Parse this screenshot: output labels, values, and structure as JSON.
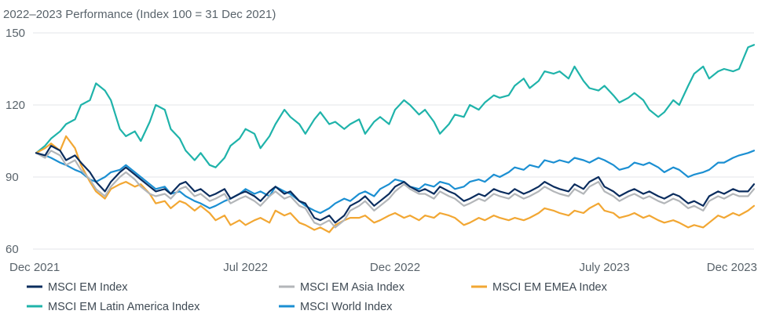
{
  "chart_data": {
    "type": "line",
    "title": "2022–2023 Performance (Index 100 = 31 Dec 2021)",
    "xlabel": "",
    "ylabel": "",
    "ylim": [
      60,
      150
    ],
    "yticks": [
      60,
      90,
      120,
      150
    ],
    "x_range": [
      0,
      24
    ],
    "x_unit": "months since 31 Dec 2021",
    "xticks": [
      {
        "x": 0,
        "label": "Dec 2021"
      },
      {
        "x": 7,
        "label": "Jul 2022"
      },
      {
        "x": 12,
        "label": "Dec 2022"
      },
      {
        "x": 19,
        "label": "July 2023"
      },
      {
        "x": 24,
        "label": "Dec 2023"
      }
    ],
    "grid": true,
    "legend_position": "bottom",
    "series": [
      {
        "name": "MSCI EM Index",
        "color": "#0b2d5e",
        "x": [
          0,
          0.3,
          0.5,
          0.8,
          1.0,
          1.3,
          1.5,
          1.8,
          2.0,
          2.3,
          2.5,
          2.8,
          3.0,
          3.3,
          3.5,
          3.8,
          4.0,
          4.3,
          4.5,
          4.8,
          5.0,
          5.3,
          5.5,
          5.8,
          6.0,
          6.3,
          6.5,
          6.8,
          7.0,
          7.3,
          7.5,
          7.8,
          8.0,
          8.3,
          8.5,
          8.8,
          9.0,
          9.3,
          9.5,
          9.8,
          10.0,
          10.3,
          10.5,
          10.8,
          11.0,
          11.3,
          11.5,
          11.8,
          12.0,
          12.3,
          12.5,
          12.8,
          13.0,
          13.3,
          13.5,
          13.8,
          14.0,
          14.3,
          14.5,
          14.8,
          15.0,
          15.3,
          15.5,
          15.8,
          16.0,
          16.3,
          16.5,
          16.8,
          17.0,
          17.3,
          17.5,
          17.8,
          18.0,
          18.3,
          18.5,
          18.8,
          19.0,
          19.3,
          19.5,
          19.8,
          20.0,
          20.3,
          20.5,
          20.8,
          21.0,
          21.3,
          21.5,
          21.8,
          22.0,
          22.3,
          22.5,
          22.8,
          23.0,
          23.3,
          23.5,
          23.8,
          24.0
        ],
        "values": [
          100,
          99,
          103,
          101,
          97,
          99,
          96,
          92,
          88,
          84,
          88,
          92,
          94,
          91,
          89,
          86,
          84,
          85,
          83,
          87,
          88,
          84,
          85,
          82,
          83,
          85,
          81,
          83,
          84,
          82,
          80,
          84,
          86,
          83,
          84,
          80,
          79,
          73,
          72,
          74,
          71,
          74,
          78,
          80,
          82,
          78,
          80,
          83,
          86,
          88,
          86,
          84,
          85,
          83,
          86,
          84,
          83,
          80,
          81,
          83,
          82,
          85,
          84,
          83,
          85,
          83,
          84,
          86,
          88,
          86,
          85,
          84,
          87,
          85,
          88,
          90,
          86,
          84,
          82,
          84,
          85,
          83,
          84,
          82,
          81,
          83,
          82,
          79,
          80,
          78,
          82,
          84,
          83,
          85,
          84,
          84,
          87
        ]
      },
      {
        "name": "MSCI EM Asia Index",
        "color": "#b3b6b9",
        "x": [
          0,
          0.3,
          0.5,
          0.8,
          1.0,
          1.3,
          1.5,
          1.8,
          2.0,
          2.3,
          2.5,
          2.8,
          3.0,
          3.3,
          3.5,
          3.8,
          4.0,
          4.3,
          4.5,
          4.8,
          5.0,
          5.3,
          5.5,
          5.8,
          6.0,
          6.3,
          6.5,
          6.8,
          7.0,
          7.3,
          7.5,
          7.8,
          8.0,
          8.3,
          8.5,
          8.8,
          9.0,
          9.3,
          9.5,
          9.8,
          10.0,
          10.3,
          10.5,
          10.8,
          11.0,
          11.3,
          11.5,
          11.8,
          12.0,
          12.3,
          12.5,
          12.8,
          13.0,
          13.3,
          13.5,
          13.8,
          14.0,
          14.3,
          14.5,
          14.8,
          15.0,
          15.3,
          15.5,
          15.8,
          16.0,
          16.3,
          16.5,
          16.8,
          17.0,
          17.3,
          17.5,
          17.8,
          18.0,
          18.3,
          18.5,
          18.8,
          19.0,
          19.3,
          19.5,
          19.8,
          20.0,
          20.3,
          20.5,
          20.8,
          21.0,
          21.3,
          21.5,
          21.8,
          22.0,
          22.3,
          22.5,
          22.8,
          23.0,
          23.3,
          23.5,
          23.8,
          24.0
        ],
        "values": [
          100,
          98,
          101,
          99,
          95,
          97,
          93,
          89,
          85,
          82,
          86,
          90,
          92,
          89,
          86,
          83,
          82,
          83,
          81,
          85,
          86,
          82,
          83,
          80,
          81,
          83,
          79,
          81,
          82,
          80,
          78,
          82,
          84,
          81,
          82,
          78,
          77,
          71,
          70,
          72,
          69,
          72,
          76,
          78,
          80,
          76,
          78,
          81,
          84,
          87,
          85,
          83,
          83,
          81,
          84,
          82,
          81,
          78,
          79,
          81,
          80,
          83,
          82,
          81,
          83,
          81,
          82,
          84,
          86,
          84,
          83,
          82,
          85,
          83,
          86,
          88,
          84,
          82,
          80,
          82,
          83,
          81,
          82,
          80,
          79,
          81,
          80,
          77,
          78,
          76,
          80,
          82,
          81,
          83,
          82,
          82,
          85
        ]
      },
      {
        "name": "MSCI EM EMEA Index",
        "color": "#f2a733",
        "x": [
          0,
          0.3,
          0.5,
          0.8,
          1.0,
          1.3,
          1.5,
          1.8,
          2.0,
          2.3,
          2.5,
          2.8,
          3.0,
          3.3,
          3.5,
          3.8,
          4.0,
          4.3,
          4.5,
          4.8,
          5.0,
          5.3,
          5.5,
          5.8,
          6.0,
          6.3,
          6.5,
          6.8,
          7.0,
          7.3,
          7.5,
          7.8,
          8.0,
          8.3,
          8.5,
          8.8,
          9.0,
          9.3,
          9.5,
          9.8,
          10.0,
          10.3,
          10.5,
          10.8,
          11.0,
          11.3,
          11.5,
          11.8,
          12.0,
          12.3,
          12.5,
          12.8,
          13.0,
          13.3,
          13.5,
          13.8,
          14.0,
          14.3,
          14.5,
          14.8,
          15.0,
          15.3,
          15.5,
          15.8,
          16.0,
          16.3,
          16.5,
          16.8,
          17.0,
          17.3,
          17.5,
          17.8,
          18.0,
          18.3,
          18.5,
          18.8,
          19.0,
          19.3,
          19.5,
          19.8,
          20.0,
          20.3,
          20.5,
          20.8,
          21.0,
          21.3,
          21.5,
          21.8,
          22.0,
          22.3,
          22.5,
          22.8,
          23.0,
          23.3,
          23.5,
          23.8,
          24.0
        ],
        "values": [
          100,
          102,
          104,
          101,
          107,
          102,
          95,
          88,
          84,
          81,
          85,
          87,
          88,
          86,
          87,
          83,
          79,
          80,
          77,
          80,
          79,
          76,
          78,
          75,
          72,
          74,
          70,
          72,
          70,
          72,
          73,
          71,
          76,
          74,
          75,
          71,
          70,
          68,
          69,
          67,
          70,
          72,
          73,
          73,
          74,
          71,
          72,
          74,
          75,
          73,
          74,
          72,
          74,
          73,
          75,
          74,
          73,
          70,
          71,
          73,
          72,
          74,
          73,
          72,
          73,
          72,
          73,
          75,
          77,
          76,
          75,
          74,
          76,
          75,
          77,
          79,
          76,
          75,
          73,
          74,
          75,
          73,
          74,
          72,
          71,
          72,
          71,
          69,
          70,
          69,
          71,
          74,
          73,
          75,
          74,
          76,
          78
        ]
      },
      {
        "name": "MSCI EM Latin America Index",
        "color": "#1fb3aa",
        "x": [
          0,
          0.3,
          0.5,
          0.8,
          1.0,
          1.3,
          1.5,
          1.8,
          2.0,
          2.3,
          2.5,
          2.8,
          3.0,
          3.3,
          3.5,
          3.8,
          4.0,
          4.3,
          4.5,
          4.8,
          5.0,
          5.3,
          5.5,
          5.8,
          6.0,
          6.3,
          6.5,
          6.8,
          7.0,
          7.3,
          7.5,
          7.8,
          8.0,
          8.3,
          8.5,
          8.8,
          9.0,
          9.3,
          9.5,
          9.8,
          10.0,
          10.3,
          10.5,
          10.8,
          11.0,
          11.3,
          11.5,
          11.8,
          12.0,
          12.3,
          12.5,
          12.8,
          13.0,
          13.3,
          13.5,
          13.8,
          14.0,
          14.3,
          14.5,
          14.8,
          15.0,
          15.3,
          15.5,
          15.8,
          16.0,
          16.3,
          16.5,
          16.8,
          17.0,
          17.3,
          17.5,
          17.8,
          18.0,
          18.3,
          18.5,
          18.8,
          19.0,
          19.3,
          19.5,
          19.8,
          20.0,
          20.3,
          20.5,
          20.8,
          21.0,
          21.3,
          21.5,
          21.8,
          22.0,
          22.3,
          22.5,
          22.8,
          23.0,
          23.3,
          23.5,
          23.8,
          24.0
        ],
        "values": [
          100,
          103,
          106,
          109,
          112,
          114,
          120,
          122,
          129,
          126,
          122,
          110,
          107,
          109,
          105,
          113,
          120,
          118,
          110,
          106,
          101,
          97,
          100,
          95,
          94,
          98,
          103,
          106,
          110,
          108,
          102,
          107,
          112,
          118,
          115,
          112,
          108,
          114,
          117,
          112,
          113,
          110,
          112,
          114,
          108,
          113,
          115,
          112,
          118,
          122,
          120,
          116,
          118,
          113,
          108,
          112,
          116,
          115,
          120,
          118,
          121,
          124,
          123,
          124,
          128,
          131,
          127,
          130,
          134,
          133,
          134,
          131,
          136,
          130,
          127,
          126,
          128,
          124,
          121,
          123,
          125,
          122,
          118,
          115,
          117,
          122,
          120,
          128,
          133,
          136,
          131,
          134,
          135,
          134,
          135,
          144,
          145
        ]
      },
      {
        "name": "MSCI World Index",
        "color": "#1b8fd2",
        "x": [
          0,
          0.3,
          0.5,
          0.8,
          1.0,
          1.3,
          1.5,
          1.8,
          2.0,
          2.3,
          2.5,
          2.8,
          3.0,
          3.3,
          3.5,
          3.8,
          4.0,
          4.3,
          4.5,
          4.8,
          5.0,
          5.3,
          5.5,
          5.8,
          6.0,
          6.3,
          6.5,
          6.8,
          7.0,
          7.3,
          7.5,
          7.8,
          8.0,
          8.3,
          8.5,
          8.8,
          9.0,
          9.3,
          9.5,
          9.8,
          10.0,
          10.3,
          10.5,
          10.8,
          11.0,
          11.3,
          11.5,
          11.8,
          12.0,
          12.3,
          12.5,
          12.8,
          13.0,
          13.3,
          13.5,
          13.8,
          14.0,
          14.3,
          14.5,
          14.8,
          15.0,
          15.3,
          15.5,
          15.8,
          16.0,
          16.3,
          16.5,
          16.8,
          17.0,
          17.3,
          17.5,
          17.8,
          18.0,
          18.3,
          18.5,
          18.8,
          19.0,
          19.3,
          19.5,
          19.8,
          20.0,
          20.3,
          20.5,
          20.8,
          21.0,
          21.3,
          21.5,
          21.8,
          22.0,
          22.3,
          22.5,
          22.8,
          23.0,
          23.3,
          23.5,
          23.8,
          24.0
        ],
        "values": [
          100,
          99,
          98,
          96,
          95,
          93,
          92,
          89,
          88,
          90,
          92,
          93,
          95,
          92,
          90,
          87,
          85,
          86,
          83,
          84,
          82,
          80,
          79,
          77,
          78,
          80,
          81,
          83,
          85,
          83,
          84,
          82,
          86,
          84,
          83,
          80,
          78,
          76,
          75,
          77,
          79,
          81,
          80,
          83,
          84,
          82,
          85,
          87,
          89,
          88,
          86,
          85,
          87,
          86,
          88,
          87,
          85,
          86,
          88,
          89,
          88,
          91,
          90,
          92,
          94,
          93,
          95,
          94,
          97,
          96,
          97,
          96,
          98,
          97,
          96,
          98,
          97,
          95,
          93,
          94,
          96,
          95,
          96,
          94,
          92,
          94,
          93,
          90,
          91,
          92,
          93,
          96,
          96,
          98,
          99,
          100,
          101
        ]
      }
    ]
  }
}
